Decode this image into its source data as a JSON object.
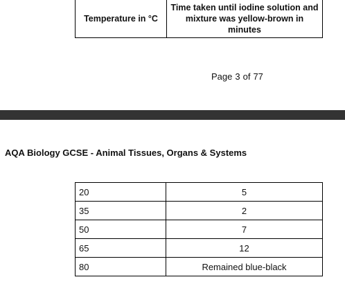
{
  "header_row": {
    "temperature_label": "Temperature in °C",
    "time_label": "Time taken until iodine solution and mixture was yellow-brown in minutes"
  },
  "footer": {
    "page_word": "Page",
    "current_page": "3",
    "of_word": "of",
    "total_pages": "77"
  },
  "document_title": "AQA Biology GCSE - Animal Tissues, Organs & Systems",
  "rows": [
    {
      "temperature": "20",
      "time": "5"
    },
    {
      "temperature": "35",
      "time": "2"
    },
    {
      "temperature": "50",
      "time": "7"
    },
    {
      "temperature": "65",
      "time": "12"
    },
    {
      "temperature": "80",
      "time": "Remained blue-black"
    }
  ],
  "colors": {
    "page_break_bar": "#333333",
    "border": "#000000"
  }
}
